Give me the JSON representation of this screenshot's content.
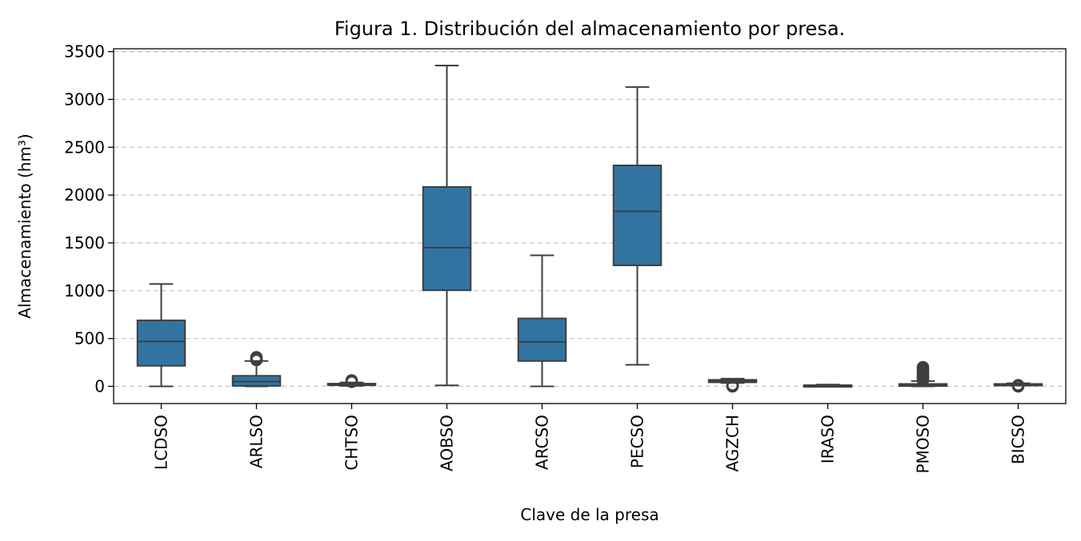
{
  "chart_data": {
    "type": "box",
    "title": "Figura 1. Distribución del almacenamiento por presa.",
    "xlabel": "Clave de la presa",
    "ylabel": "Almacenamiento (hm³)",
    "ylim": [
      -180,
      3530
    ],
    "yticks": [
      0,
      500,
      1000,
      1500,
      2000,
      2500,
      3000,
      3500
    ],
    "ytick_labels": [
      "0",
      "500",
      "1000",
      "1500",
      "2000",
      "2500",
      "3000",
      "3500"
    ],
    "grid": "y-dashed",
    "box_color": "#3274a1",
    "line_color": "#3f3f3f",
    "categories": [
      "LCDSO",
      "ARLSO",
      "CHTSO",
      "AOBSO",
      "ARCSO",
      "PECSO",
      "AGZCH",
      "IRASO",
      "PMOSO",
      "BICSO"
    ],
    "boxes": [
      {
        "name": "LCDSO",
        "whisker_low": 0,
        "q1": 215,
        "median": 470,
        "q3": 690,
        "whisker_high": 1070,
        "outliers": []
      },
      {
        "name": "ARLSO",
        "whisker_low": 0,
        "q1": 5,
        "median": 50,
        "q3": 110,
        "whisker_high": 265,
        "outliers": [
          275,
          285,
          295,
          305
        ]
      },
      {
        "name": "CHTSO",
        "whisker_low": 5,
        "q1": 12,
        "median": 20,
        "q3": 28,
        "whisker_high": 40,
        "outliers": [
          48,
          55,
          62
        ]
      },
      {
        "name": "AOBSO",
        "whisker_low": 10,
        "q1": 1005,
        "median": 1450,
        "q3": 2085,
        "whisker_high": 3355,
        "outliers": []
      },
      {
        "name": "ARCSO",
        "whisker_low": 0,
        "q1": 265,
        "median": 465,
        "q3": 710,
        "whisker_high": 1370,
        "outliers": []
      },
      {
        "name": "PECSO",
        "whisker_low": 225,
        "q1": 1265,
        "median": 1830,
        "q3": 2310,
        "whisker_high": 3130,
        "outliers": []
      },
      {
        "name": "AGZCH",
        "whisker_low": 35,
        "q1": 42,
        "median": 55,
        "q3": 68,
        "whisker_high": 80,
        "outliers": [
          0,
          5,
          12
        ]
      },
      {
        "name": "IRASO",
        "whisker_low": 2,
        "q1": 5,
        "median": 8,
        "q3": 12,
        "whisker_high": 18,
        "outliers": []
      },
      {
        "name": "PMOSO",
        "whisker_low": 0,
        "q1": 3,
        "median": 12,
        "q3": 25,
        "whisker_high": 55,
        "outliers": [
          65,
          80,
          95,
          110,
          125,
          140,
          155,
          170,
          185,
          200
        ]
      },
      {
        "name": "BICSO",
        "whisker_low": 10,
        "q1": 15,
        "median": 20,
        "q3": 25,
        "whisker_high": 32,
        "outliers": [
          0,
          5,
          12
        ]
      }
    ]
  }
}
